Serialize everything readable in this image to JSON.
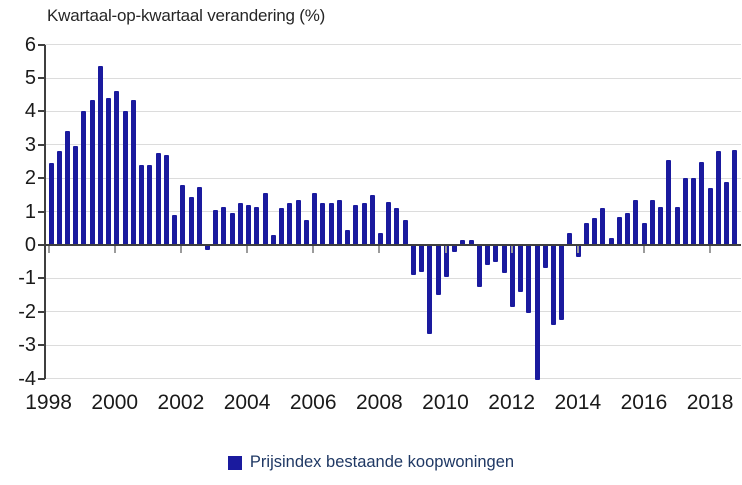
{
  "title": "Kwartaal-op-kwartaal verandering (%)",
  "legend": {
    "label": "Prijsindex bestaande koopwoningen",
    "swatch_color": "#1a1a9e"
  },
  "colors": {
    "bar": "#1a1a9e",
    "axis": "#3f3f3f",
    "gridline": "#dcdcdc",
    "x_tick": "#9b9b9b",
    "axis_text": "#1a1a1a",
    "title_text": "#262626",
    "legend_text": "#1f3864"
  },
  "chart_data": {
    "type": "bar",
    "title": "Kwartaal-op-kwartaal verandering (%)",
    "series_name": "Prijsindex bestaande koopwoningen",
    "x_start_year": 1998,
    "frequency": "quarterly",
    "x_tick_years": [
      1998,
      2000,
      2002,
      2004,
      2006,
      2008,
      2010,
      2012,
      2014,
      2016,
      2018
    ],
    "y_ticks": [
      6,
      5,
      4,
      3,
      2,
      1,
      0,
      -1,
      -2,
      -3,
      -4
    ],
    "ylim": [
      -4,
      6
    ],
    "grid": "horizontal",
    "legend_position": "bottom-center",
    "values": [
      2.45,
      2.8,
      3.4,
      2.95,
      4.0,
      4.35,
      5.35,
      4.4,
      4.6,
      4.0,
      4.35,
      2.4,
      2.4,
      2.75,
      2.7,
      0.9,
      1.8,
      1.45,
      1.75,
      -0.15,
      1.05,
      1.15,
      0.95,
      1.25,
      1.2,
      1.15,
      1.55,
      0.3,
      1.1,
      1.25,
      1.35,
      0.75,
      1.55,
      1.25,
      1.25,
      1.35,
      0.45,
      1.2,
      1.25,
      1.5,
      0.35,
      1.3,
      1.1,
      0.75,
      -0.9,
      -0.8,
      -2.65,
      -1.5,
      -0.95,
      -0.2,
      0.15,
      0.15,
      -1.25,
      -0.6,
      -0.5,
      -0.85,
      -1.85,
      -1.4,
      -2.05,
      -4.05,
      -0.7,
      -2.4,
      -2.25,
      0.35,
      -0.35,
      0.65,
      0.8,
      1.1,
      0.2,
      0.85,
      0.95,
      1.35,
      0.65,
      1.35,
      1.15,
      2.55,
      1.15,
      2.0,
      2.0,
      2.5,
      1.7,
      2.8,
      1.9,
      2.85
    ]
  }
}
